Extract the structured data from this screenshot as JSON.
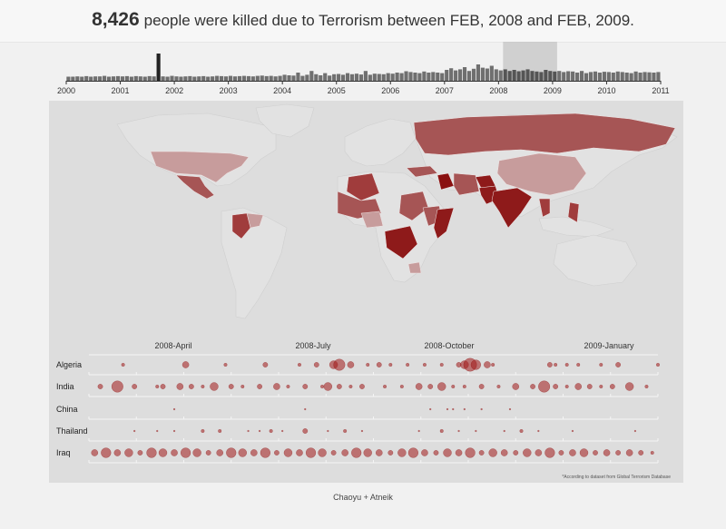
{
  "header": {
    "count": "8,426",
    "text": "people were killed due to Terrorism between FEB, 2008 and FEB, 2009."
  },
  "footer": {
    "credit": "Chaoyu + Atneik",
    "note": "*According to dataset from Global Terrorism Database"
  },
  "colors": {
    "bar": "#6f6f6f",
    "bar_selected": "#222222",
    "brush": "#c4c4c4",
    "country_high": "#8e1a1a",
    "country_mid": "#a04545",
    "country_low": "#c79c9c",
    "bubble": "#a01818",
    "panel": "#dddddd"
  },
  "chart_data": [
    {
      "type": "bar",
      "xlabel": "",
      "ylabel": "",
      "x_ticks": [
        "2000",
        "2001",
        "2002",
        "2003",
        "2004",
        "2005",
        "2006",
        "2007",
        "2008",
        "2009",
        "2010",
        "2011"
      ],
      "x_range": [
        2000,
        2011
      ],
      "brush": [
        "2008-02",
        "2009-02"
      ],
      "values": [
        0.15,
        0.15,
        0.16,
        0.15,
        0.17,
        0.15,
        0.16,
        0.16,
        0.18,
        0.15,
        0.16,
        0.17,
        0.16,
        0.17,
        0.15,
        0.17,
        0.16,
        0.15,
        0.17,
        0.16,
        1.0,
        0.16,
        0.15,
        0.18,
        0.16,
        0.15,
        0.16,
        0.17,
        0.15,
        0.16,
        0.17,
        0.15,
        0.16,
        0.18,
        0.17,
        0.16,
        0.18,
        0.16,
        0.17,
        0.18,
        0.17,
        0.16,
        0.18,
        0.19,
        0.17,
        0.18,
        0.16,
        0.18,
        0.22,
        0.2,
        0.19,
        0.3,
        0.18,
        0.22,
        0.36,
        0.24,
        0.2,
        0.28,
        0.19,
        0.24,
        0.25,
        0.22,
        0.28,
        0.24,
        0.26,
        0.23,
        0.36,
        0.22,
        0.26,
        0.25,
        0.24,
        0.28,
        0.26,
        0.3,
        0.28,
        0.35,
        0.32,
        0.3,
        0.28,
        0.34,
        0.3,
        0.32,
        0.3,
        0.28,
        0.4,
        0.46,
        0.38,
        0.42,
        0.5,
        0.36,
        0.44,
        0.6,
        0.48,
        0.45,
        0.55,
        0.42,
        0.38,
        0.42,
        0.36,
        0.4,
        0.35,
        0.38,
        0.42,
        0.36,
        0.34,
        0.32,
        0.4,
        0.36,
        0.34,
        0.36,
        0.32,
        0.35,
        0.34,
        0.3,
        0.36,
        0.28,
        0.32,
        0.34,
        0.3,
        0.33,
        0.32,
        0.3,
        0.34,
        0.32,
        0.3,
        0.28,
        0.34,
        0.3,
        0.32,
        0.31,
        0.3,
        0.32
      ]
    },
    {
      "type": "scatter",
      "title": "",
      "x_ticks": [
        "2008-April",
        "2008-July",
        "2008-October",
        "2009-January"
      ],
      "x_range": [
        "2008-02",
        "2009-02"
      ],
      "categories": [
        "Algeria",
        "India",
        "China",
        "Thailand",
        "Iraq"
      ],
      "series": [
        {
          "name": "Algeria",
          "points": [
            [
              0.06,
              2
            ],
            [
              0.17,
              4
            ],
            [
              0.24,
              2
            ],
            [
              0.31,
              3
            ],
            [
              0.37,
              2
            ],
            [
              0.4,
              3
            ],
            [
              0.43,
              5
            ],
            [
              0.44,
              7
            ],
            [
              0.46,
              4
            ],
            [
              0.49,
              2
            ],
            [
              0.51,
              3
            ],
            [
              0.53,
              2
            ],
            [
              0.56,
              2
            ],
            [
              0.59,
              2
            ],
            [
              0.62,
              2
            ],
            [
              0.65,
              3
            ],
            [
              0.66,
              5
            ],
            [
              0.67,
              8
            ],
            [
              0.68,
              6
            ],
            [
              0.7,
              4
            ],
            [
              0.71,
              2
            ],
            [
              0.81,
              3
            ],
            [
              0.82,
              2
            ],
            [
              0.84,
              2
            ],
            [
              0.86,
              2
            ],
            [
              0.9,
              2
            ],
            [
              0.93,
              3
            ],
            [
              1.33,
              2
            ]
          ]
        },
        {
          "name": "India",
          "points": [
            [
              0.02,
              3
            ],
            [
              0.05,
              7
            ],
            [
              0.08,
              3
            ],
            [
              0.12,
              2
            ],
            [
              0.13,
              3
            ],
            [
              0.16,
              4
            ],
            [
              0.18,
              3
            ],
            [
              0.2,
              2
            ],
            [
              0.22,
              5
            ],
            [
              0.25,
              3
            ],
            [
              0.27,
              2
            ],
            [
              0.3,
              3
            ],
            [
              0.33,
              4
            ],
            [
              0.35,
              2
            ],
            [
              0.38,
              3
            ],
            [
              0.41,
              2
            ],
            [
              0.42,
              5
            ],
            [
              0.44,
              3
            ],
            [
              0.46,
              2
            ],
            [
              0.48,
              3
            ],
            [
              0.52,
              2
            ],
            [
              0.55,
              2
            ],
            [
              0.58,
              4
            ],
            [
              0.6,
              3
            ],
            [
              0.62,
              5
            ],
            [
              0.64,
              2
            ],
            [
              0.66,
              2
            ],
            [
              0.69,
              3
            ],
            [
              0.72,
              2
            ],
            [
              0.75,
              4
            ],
            [
              0.78,
              3
            ],
            [
              0.8,
              7
            ],
            [
              0.82,
              3
            ],
            [
              0.84,
              2
            ],
            [
              0.86,
              4
            ],
            [
              0.88,
              3
            ],
            [
              0.9,
              2
            ],
            [
              0.92,
              3
            ],
            [
              0.95,
              5
            ],
            [
              0.98,
              2
            ]
          ]
        },
        {
          "name": "China",
          "points": [
            [
              0.15,
              1
            ],
            [
              0.38,
              1
            ],
            [
              0.6,
              1
            ],
            [
              0.63,
              1
            ],
            [
              0.64,
              1
            ],
            [
              0.66,
              1
            ],
            [
              0.69,
              1
            ],
            [
              0.74,
              1
            ]
          ]
        },
        {
          "name": "Thailand",
          "points": [
            [
              0.08,
              1
            ],
            [
              0.12,
              1
            ],
            [
              0.15,
              1
            ],
            [
              0.2,
              2
            ],
            [
              0.23,
              2
            ],
            [
              0.28,
              1
            ],
            [
              0.3,
              1
            ],
            [
              0.32,
              2
            ],
            [
              0.34,
              1
            ],
            [
              0.38,
              3
            ],
            [
              0.42,
              1
            ],
            [
              0.45,
              2
            ],
            [
              0.48,
              1
            ],
            [
              0.58,
              1
            ],
            [
              0.62,
              2
            ],
            [
              0.65,
              1
            ],
            [
              0.68,
              1
            ],
            [
              0.73,
              1
            ],
            [
              0.76,
              2
            ],
            [
              0.79,
              1
            ],
            [
              0.85,
              1
            ],
            [
              0.96,
              1
            ]
          ]
        },
        {
          "name": "Iraq",
          "points": [
            [
              0.01,
              4
            ],
            [
              0.03,
              6
            ],
            [
              0.05,
              4
            ],
            [
              0.07,
              5
            ],
            [
              0.09,
              3
            ],
            [
              0.11,
              6
            ],
            [
              0.13,
              5
            ],
            [
              0.15,
              4
            ],
            [
              0.17,
              6
            ],
            [
              0.19,
              5
            ],
            [
              0.21,
              3
            ],
            [
              0.23,
              4
            ],
            [
              0.25,
              6
            ],
            [
              0.27,
              5
            ],
            [
              0.29,
              4
            ],
            [
              0.31,
              6
            ],
            [
              0.33,
              3
            ],
            [
              0.35,
              5
            ],
            [
              0.37,
              4
            ],
            [
              0.39,
              6
            ],
            [
              0.41,
              5
            ],
            [
              0.43,
              3
            ],
            [
              0.45,
              4
            ],
            [
              0.47,
              6
            ],
            [
              0.49,
              5
            ],
            [
              0.51,
              4
            ],
            [
              0.53,
              3
            ],
            [
              0.55,
              5
            ],
            [
              0.57,
              6
            ],
            [
              0.59,
              4
            ],
            [
              0.61,
              3
            ],
            [
              0.63,
              5
            ],
            [
              0.65,
              4
            ],
            [
              0.67,
              6
            ],
            [
              0.69,
              3
            ],
            [
              0.71,
              5
            ],
            [
              0.73,
              4
            ],
            [
              0.75,
              3
            ],
            [
              0.77,
              5
            ],
            [
              0.79,
              4
            ],
            [
              0.81,
              6
            ],
            [
              0.83,
              3
            ],
            [
              0.85,
              4
            ],
            [
              0.87,
              5
            ],
            [
              0.89,
              3
            ],
            [
              0.91,
              4
            ],
            [
              0.93,
              3
            ],
            [
              0.95,
              4
            ],
            [
              0.97,
              3
            ],
            [
              0.99,
              2
            ]
          ]
        }
      ]
    }
  ]
}
